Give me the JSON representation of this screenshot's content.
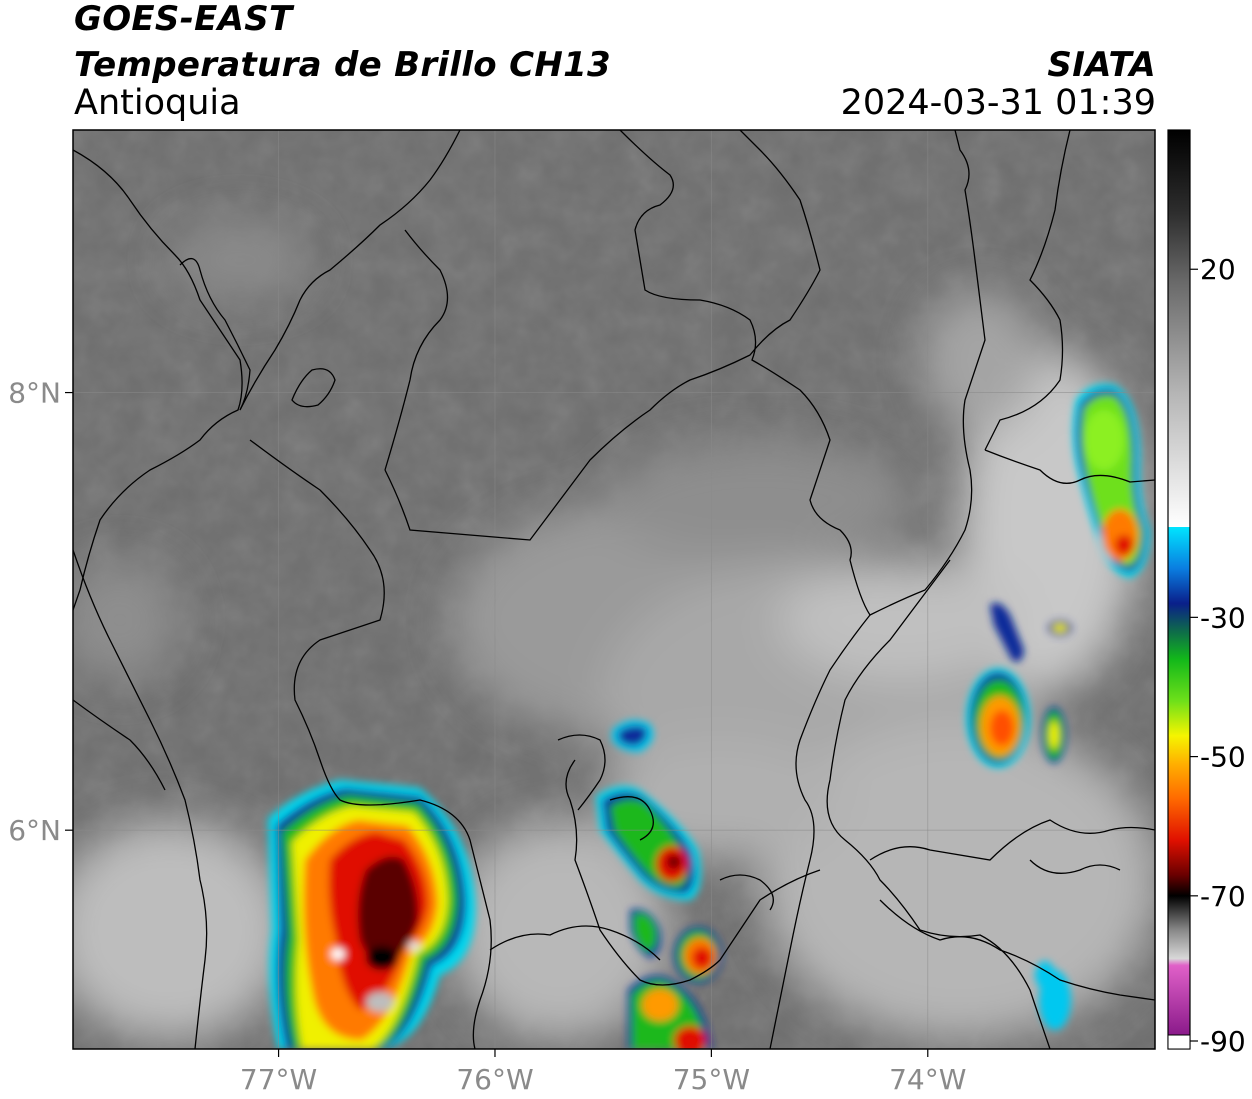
{
  "header": {
    "satellite": "GOES-EAST",
    "product": "Temperatura de Brillo CH13",
    "region": "Antioquia",
    "organization": "SIATA",
    "datetime": "2024-03-31 01:39"
  },
  "map": {
    "lon_range": [
      -77.95,
      -72.95
    ],
    "lat_range": [
      5.0,
      9.2
    ],
    "x_ticks": [
      {
        "lon": -77,
        "label": "77°W"
      },
      {
        "lon": -76,
        "label": "76°W"
      },
      {
        "lon": -75,
        "label": "75°W"
      },
      {
        "lon": -74,
        "label": "74°W"
      }
    ],
    "y_ticks": [
      {
        "lat": 8,
        "label": "8°N"
      },
      {
        "lat": 6,
        "label": "6°N"
      }
    ],
    "gridlines": true,
    "colors": {
      "background_gray": "#6e6e6e",
      "cloud_gray": "#c4c4c4",
      "boundary": "#000000"
    },
    "storm_cells": [
      {
        "name": "cell-west-main",
        "lon": -76.55,
        "lat": 5.78,
        "min_temp_c": -78
      },
      {
        "name": "cell-west-south",
        "lon": -76.78,
        "lat": 5.3,
        "min_temp_c": -60
      },
      {
        "name": "cell-central-1",
        "lon": -75.18,
        "lat": 5.82,
        "min_temp_c": -62
      },
      {
        "name": "cell-central-2",
        "lon": -75.04,
        "lat": 5.4,
        "min_temp_c": -66
      },
      {
        "name": "cell-central-3",
        "lon": -75.2,
        "lat": 5.13,
        "min_temp_c": -55
      },
      {
        "name": "cell-east-1",
        "lon": -73.74,
        "lat": 6.5,
        "min_temp_c": -58
      },
      {
        "name": "cell-northeast",
        "lon": -73.15,
        "lat": 7.55,
        "min_temp_c": -60
      }
    ]
  },
  "colorbar": {
    "ticks": [
      {
        "value": 20,
        "label": "20"
      },
      {
        "value": -30,
        "label": "-30"
      },
      {
        "value": -50,
        "label": "-50"
      },
      {
        "value": -70,
        "label": "-70"
      },
      {
        "value": -90,
        "label": "-90"
      }
    ],
    "stops": [
      {
        "value": 40,
        "color": "#000000"
      },
      {
        "value": 28,
        "color": "#2e2e2e"
      },
      {
        "value": 18,
        "color": "#6a6a6a"
      },
      {
        "value": 2,
        "color": "#b6b6b6"
      },
      {
        "value": -17,
        "color": "#ffffff"
      },
      {
        "value": -17.01,
        "color": "#00e5ff"
      },
      {
        "value": -23,
        "color": "#0a7de0"
      },
      {
        "value": -28,
        "color": "#0a1f8a"
      },
      {
        "value": -32,
        "color": "#0e6b4a"
      },
      {
        "value": -36,
        "color": "#12b81a"
      },
      {
        "value": -42,
        "color": "#6ee01a"
      },
      {
        "value": -47,
        "color": "#f5f500"
      },
      {
        "value": -51,
        "color": "#ffb000"
      },
      {
        "value": -56,
        "color": "#ff6a00"
      },
      {
        "value": -62,
        "color": "#e01000"
      },
      {
        "value": -67,
        "color": "#6a0000"
      },
      {
        "value": -70,
        "color": "#000000"
      },
      {
        "value": -75,
        "color": "#8a8a8a"
      },
      {
        "value": -79,
        "color": "#d8d8d8"
      },
      {
        "value": -80,
        "color": "#e060c8"
      },
      {
        "value": -90,
        "color": "#8a1a8a"
      }
    ]
  }
}
